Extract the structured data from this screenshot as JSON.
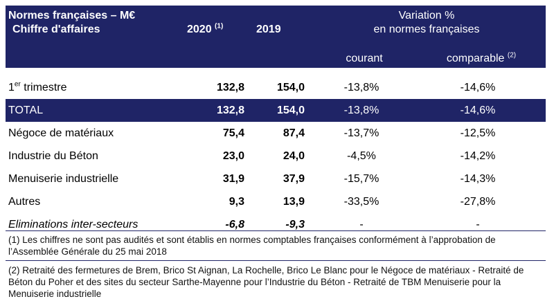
{
  "header": {
    "title_line1": "Normes françaises – M€",
    "title_line2": "Chiffre d'affaires",
    "col_2020": "2020",
    "col_2020_sup": "(1)",
    "col_2019": "2019",
    "variation_line1": "Variation %",
    "variation_line2": "en normes françaises",
    "courant": "courant",
    "comparable": "comparable",
    "comparable_sup": "(2)"
  },
  "rows": [
    {
      "label": "1",
      "label_sup": "er",
      "label_rest": " trimestre",
      "y2020": "132,8",
      "y2019": "154,0",
      "courant": "-13,8%",
      "comparable": "-14,6%"
    },
    {
      "label": "TOTAL",
      "y2020": "132,8",
      "y2019": "154,0",
      "courant": "-13,8%",
      "comparable": "-14,6%"
    },
    {
      "label": "Négoce de matériaux",
      "y2020": "75,4",
      "y2019": "87,4",
      "courant": "-13,7%",
      "comparable": "-12,5%"
    },
    {
      "label": "Industrie du Béton",
      "y2020": "23,0",
      "y2019": "24,0",
      "courant": "-4,5%",
      "comparable": "-14,2%"
    },
    {
      "label": "Menuiserie industrielle",
      "y2020": "31,9",
      "y2019": "37,9",
      "courant": "-15,7%",
      "comparable": "-14,3%"
    },
    {
      "label": "Autres",
      "y2020": "9,3",
      "y2019": "13,9",
      "courant": "-33,5%",
      "comparable": "-27,8%"
    },
    {
      "label": "Eliminations inter-secteurs",
      "y2020": "-6,8",
      "y2019": "-9,3",
      "courant": "-",
      "comparable": "-"
    }
  ],
  "notes": {
    "note1": "(1) Les chiffres ne sont pas audités et sont établis en normes comptables françaises conformément à l’approbation de l’Assemblée Générale du 25 mai 2018",
    "note2": "(2) Retraité des fermetures de Brem, Brico St Aignan, La Rochelle, Brico Le Blanc pour le Négoce de matériaux - Retraité de Béton du Poher et des sites du secteur Sarthe-Mayenne pour l’Industrie du Béton - Retraité de TBM Menuiserie pour la Menuiserie industrielle"
  }
}
